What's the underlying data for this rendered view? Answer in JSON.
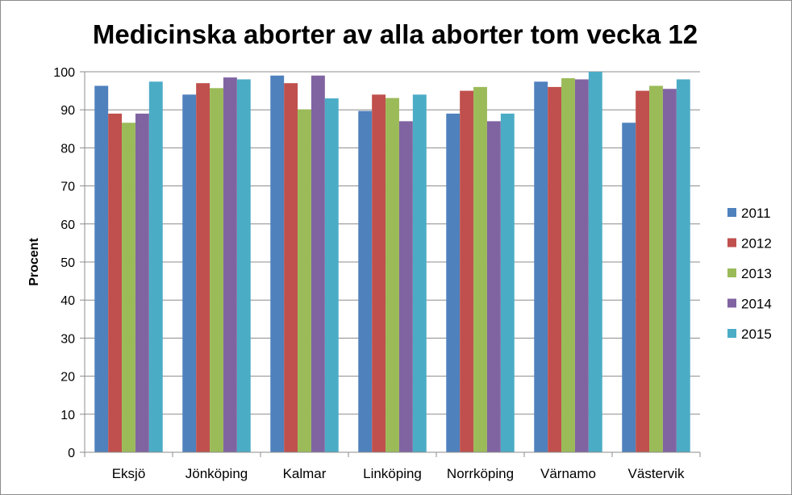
{
  "chart_data": {
    "type": "bar",
    "title": "Medicinska aborter av alla aborter tom vecka 12",
    "ylabel": "Procent",
    "xlabel": "",
    "ylim": [
      0,
      100
    ],
    "yticks": [
      0,
      10,
      20,
      30,
      40,
      50,
      60,
      70,
      80,
      90,
      100
    ],
    "grid": "horizontal",
    "legend_position": "right",
    "categories": [
      "Eksjö",
      "Jönköping",
      "Kalmar",
      "Linköping",
      "Norrköping",
      "Värnamo",
      "Västervik"
    ],
    "series": [
      {
        "name": "2011",
        "color": "#4f81bd",
        "values": [
          96.3,
          94.0,
          99.0,
          89.7,
          89.0,
          97.4,
          86.6
        ]
      },
      {
        "name": "2012",
        "color": "#c0504d",
        "values": [
          89.0,
          97.0,
          97.0,
          94.0,
          95.0,
          96.0,
          95.0
        ]
      },
      {
        "name": "2013",
        "color": "#9bbb59",
        "values": [
          86.6,
          95.7,
          90.1,
          93.1,
          96.0,
          98.3,
          96.3
        ]
      },
      {
        "name": "2014",
        "color": "#8064a2",
        "values": [
          89.0,
          98.5,
          99.0,
          87.0,
          87.0,
          98.0,
          95.5
        ]
      },
      {
        "name": "2015",
        "color": "#4bacc6",
        "values": [
          97.4,
          98.0,
          93.0,
          94.0,
          89.0,
          100.0,
          98.0
        ]
      }
    ]
  }
}
